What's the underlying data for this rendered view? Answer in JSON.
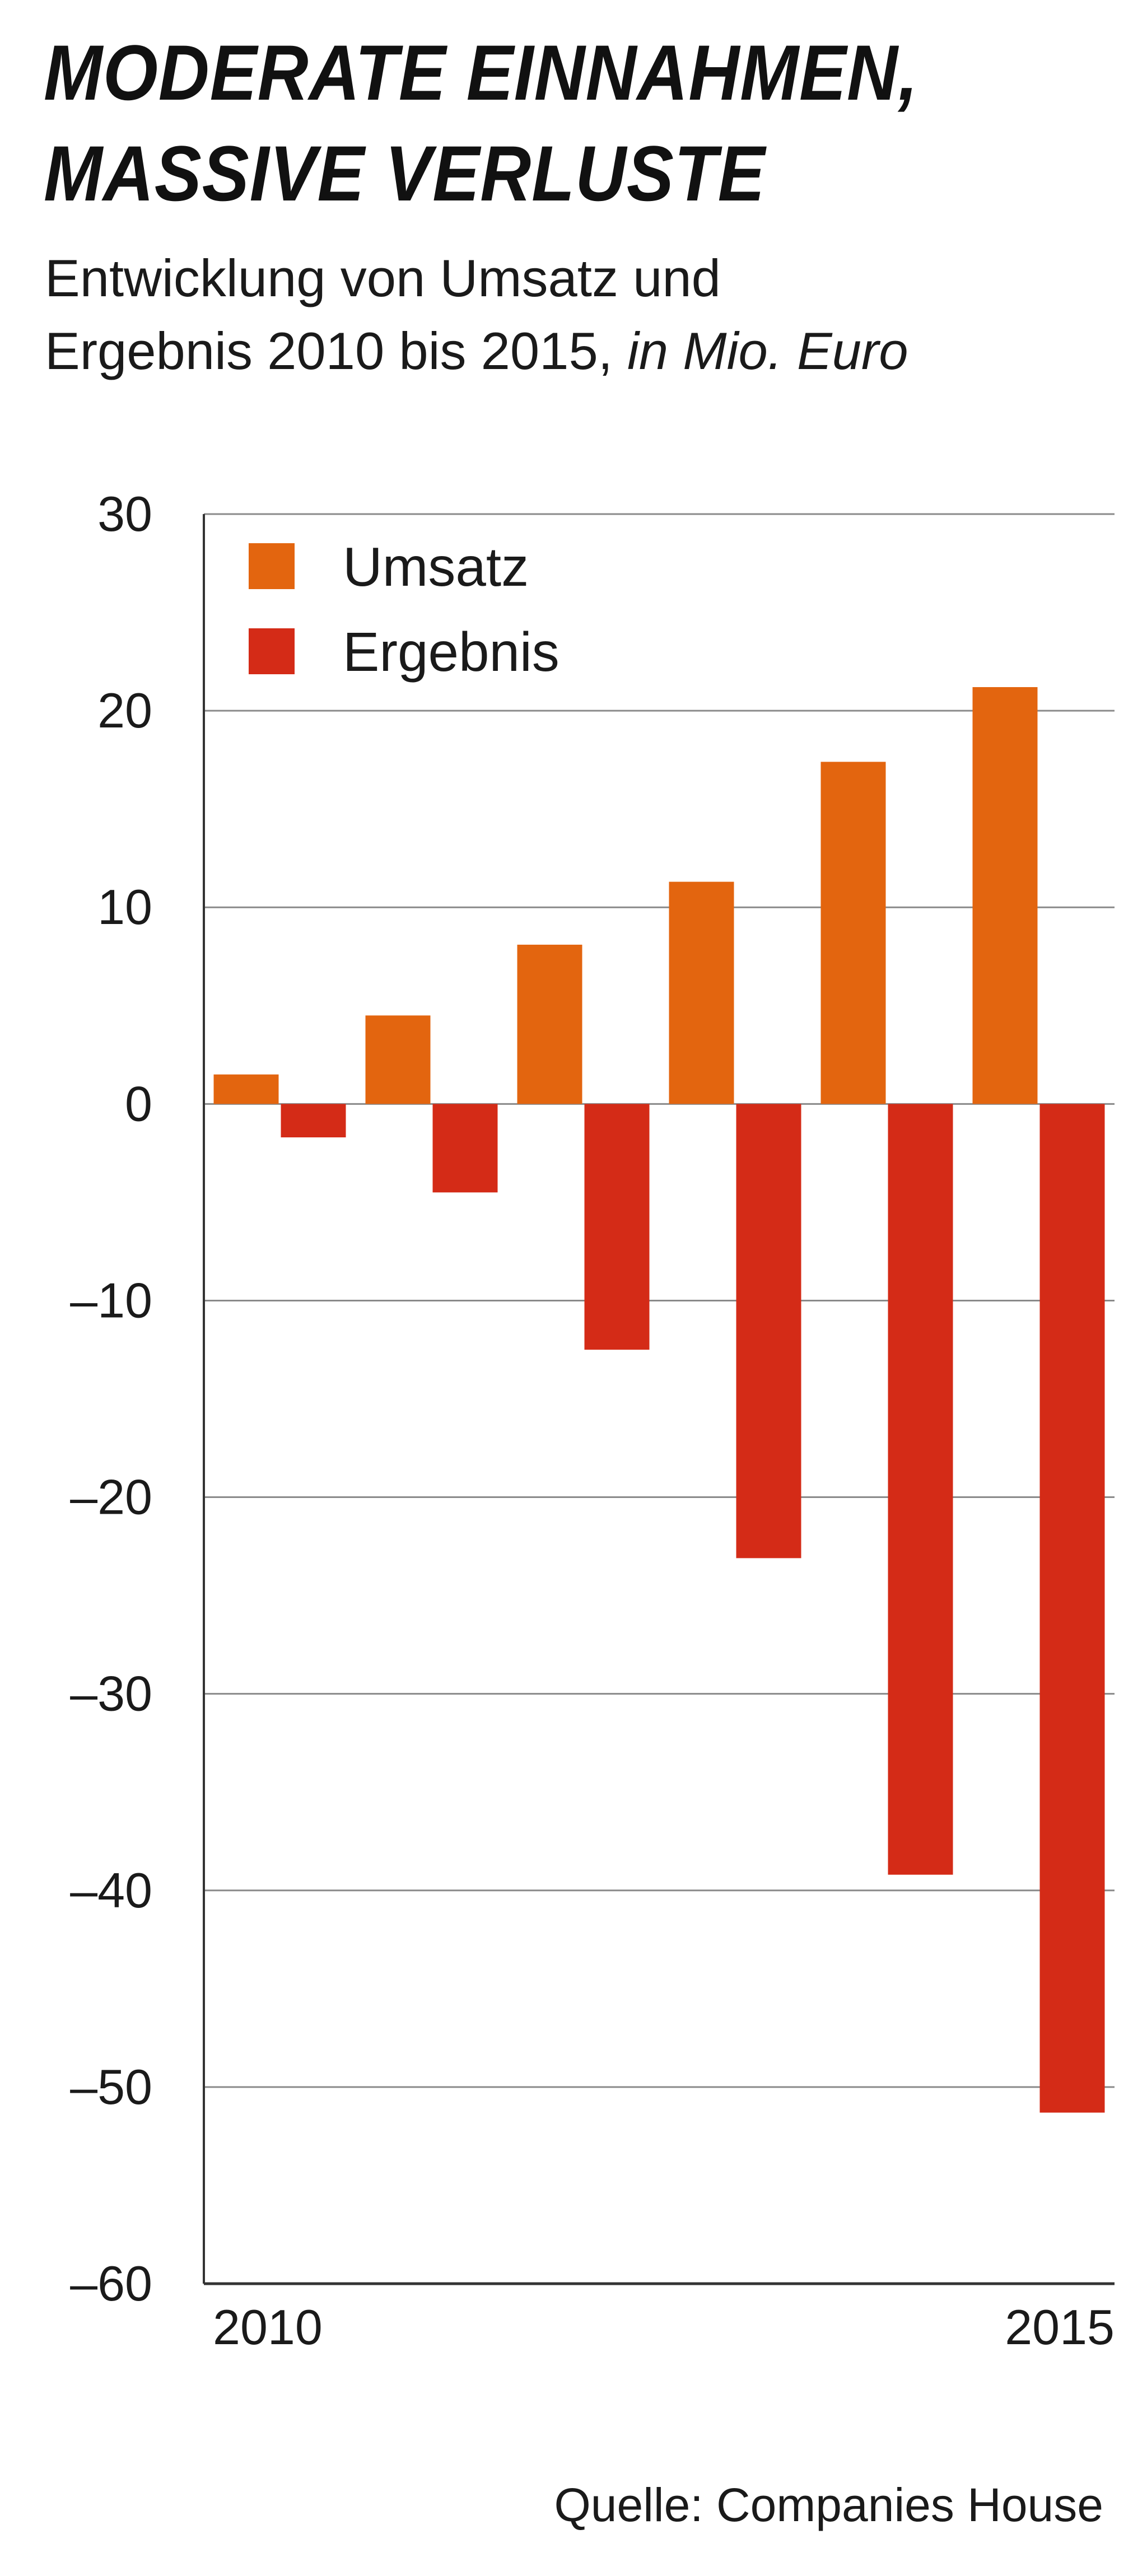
{
  "header": {
    "title_line1": "MODERATE EINNAHMEN,",
    "title_line2": "MASSIVE VERLUSTE",
    "subtitle_line1": "Entwicklung von Umsatz und",
    "subtitle_line2": "Ergebnis 2010 bis 2015,",
    "subtitle_unit": "in Mio. Euro"
  },
  "source": "Quelle: Companies House",
  "colors": {
    "umsatz": "#E3650F",
    "ergebnis": "#D42B17",
    "grid": "#8a8a8a",
    "axis": "#333333"
  },
  "chart_data": {
    "type": "bar",
    "title": "MODERATE EINNAHMEN, MASSIVE VERLUSTE",
    "subtitle": "Entwicklung von Umsatz und Ergebnis 2010 bis 2015, in Mio. Euro",
    "categories": [
      "2010",
      "2011",
      "2012",
      "2013",
      "2014",
      "2015"
    ],
    "x_tick_labels": [
      "2010",
      "",
      "",
      "",
      "",
      "2015"
    ],
    "series": [
      {
        "name": "Umsatz",
        "color": "#E3650F",
        "values": [
          1.5,
          4.5,
          8.1,
          11.3,
          17.4,
          21.2
        ]
      },
      {
        "name": "Ergebnis",
        "color": "#D42B17",
        "values": [
          -1.7,
          -4.5,
          -12.5,
          -23.1,
          -39.2,
          -51.3
        ]
      }
    ],
    "y_ticks": [
      30,
      20,
      10,
      0,
      -10,
      -20,
      -30,
      -40,
      -50,
      -60
    ],
    "y_tick_labels": [
      "30",
      "20",
      "10",
      "0",
      "–10",
      "–20",
      "–30",
      "–40",
      "–50",
      "–60"
    ],
    "ylim": [
      -60,
      30
    ],
    "xlabel": "",
    "ylabel": "",
    "grid": true,
    "legend": "top-left",
    "source": "Quelle: Companies House"
  }
}
